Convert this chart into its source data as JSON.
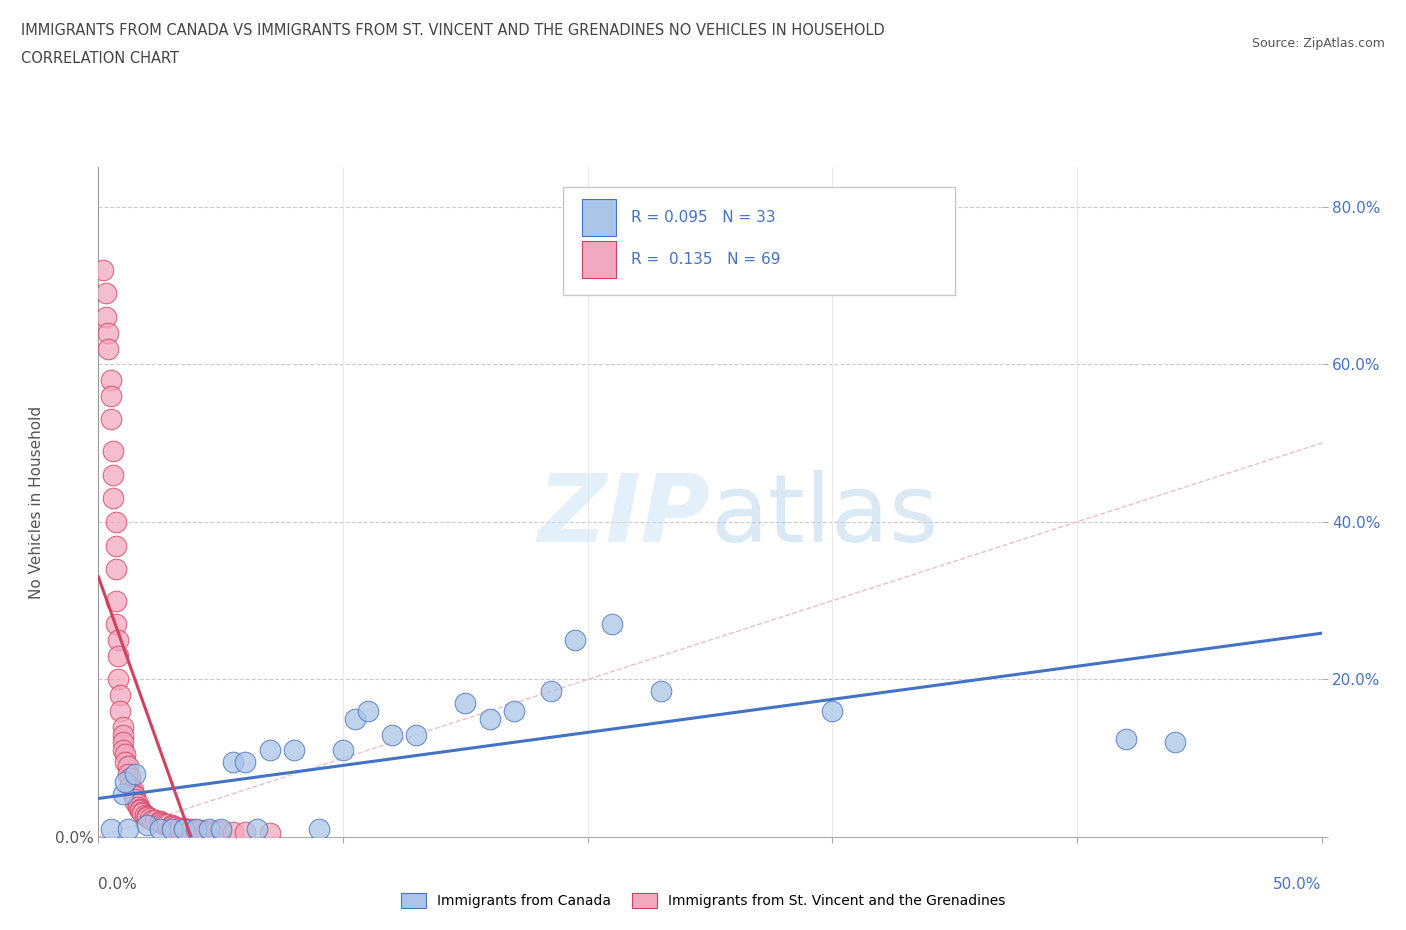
{
  "title_line1": "IMMIGRANTS FROM CANADA VS IMMIGRANTS FROM ST. VINCENT AND THE GRENADINES NO VEHICLES IN HOUSEHOLD",
  "title_line2": "CORRELATION CHART",
  "source": "Source: ZipAtlas.com",
  "ylabel": "No Vehicles in Household",
  "xlim": [
    0.0,
    0.5
  ],
  "ylim": [
    0.0,
    0.85
  ],
  "canada_R": 0.095,
  "canada_N": 33,
  "svg_R": 0.135,
  "svg_N": 69,
  "canada_color": "#aac5e8",
  "svg_color": "#f2a8be",
  "canada_line_color": "#4472c4",
  "svg_line_color": "#d44060",
  "diagonal_color": "#e8b8c8",
  "background": "#ffffff",
  "watermark_zip": "ZIP",
  "watermark_atlas": "atlas",
  "legend_label_canada": "Immigrants from Canada",
  "legend_label_svg": "Immigrants from St. Vincent and the Grenadines",
  "canada_x": [
    0.005,
    0.01,
    0.011,
    0.012,
    0.015,
    0.02,
    0.025,
    0.03,
    0.035,
    0.04,
    0.045,
    0.05,
    0.055,
    0.06,
    0.065,
    0.07,
    0.08,
    0.09,
    0.1,
    0.105,
    0.11,
    0.12,
    0.13,
    0.15,
    0.16,
    0.17,
    0.185,
    0.195,
    0.21,
    0.23,
    0.3,
    0.42,
    0.44
  ],
  "canada_y": [
    0.01,
    0.055,
    0.07,
    0.01,
    0.08,
    0.015,
    0.01,
    0.01,
    0.01,
    0.01,
    0.01,
    0.01,
    0.095,
    0.095,
    0.01,
    0.11,
    0.11,
    0.01,
    0.11,
    0.15,
    0.16,
    0.13,
    0.13,
    0.17,
    0.15,
    0.16,
    0.185,
    0.25,
    0.27,
    0.185,
    0.16,
    0.125,
    0.12
  ],
  "svg_x": [
    0.002,
    0.003,
    0.003,
    0.004,
    0.004,
    0.005,
    0.005,
    0.005,
    0.006,
    0.006,
    0.006,
    0.007,
    0.007,
    0.007,
    0.007,
    0.007,
    0.008,
    0.008,
    0.008,
    0.009,
    0.009,
    0.01,
    0.01,
    0.01,
    0.01,
    0.011,
    0.011,
    0.012,
    0.012,
    0.013,
    0.013,
    0.014,
    0.014,
    0.015,
    0.015,
    0.015,
    0.016,
    0.016,
    0.017,
    0.017,
    0.018,
    0.018,
    0.019,
    0.02,
    0.02,
    0.021,
    0.022,
    0.023,
    0.025,
    0.025,
    0.026,
    0.027,
    0.028,
    0.03,
    0.03,
    0.031,
    0.033,
    0.035,
    0.036,
    0.038,
    0.04,
    0.042,
    0.044,
    0.046,
    0.048,
    0.05,
    0.055,
    0.06,
    0.07
  ],
  "svg_y": [
    0.72,
    0.69,
    0.66,
    0.64,
    0.62,
    0.58,
    0.56,
    0.53,
    0.49,
    0.46,
    0.43,
    0.4,
    0.37,
    0.34,
    0.3,
    0.27,
    0.25,
    0.23,
    0.2,
    0.18,
    0.16,
    0.14,
    0.13,
    0.12,
    0.11,
    0.105,
    0.095,
    0.09,
    0.08,
    0.075,
    0.065,
    0.06,
    0.055,
    0.052,
    0.048,
    0.045,
    0.042,
    0.038,
    0.036,
    0.034,
    0.032,
    0.03,
    0.028,
    0.027,
    0.025,
    0.024,
    0.022,
    0.021,
    0.02,
    0.019,
    0.018,
    0.017,
    0.016,
    0.015,
    0.014,
    0.013,
    0.012,
    0.011,
    0.01,
    0.01,
    0.009,
    0.009,
    0.008,
    0.008,
    0.007,
    0.007,
    0.006,
    0.006,
    0.005
  ]
}
